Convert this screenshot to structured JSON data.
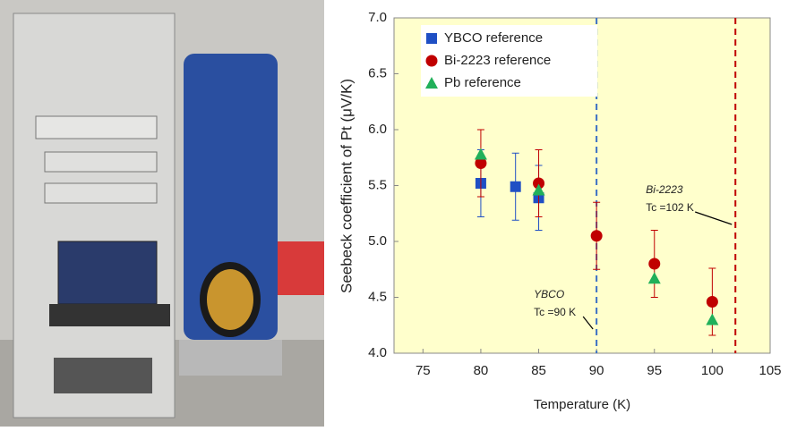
{
  "chart_data": {
    "type": "scatter",
    "xlabel": "Temperature (K)",
    "ylabel": "Seebeck coefficient of Pt  (μV/K)",
    "xlim": [
      72.5,
      105
    ],
    "xticks": [
      75,
      80,
      85,
      90,
      95,
      100,
      105
    ],
    "ylim": [
      4,
      7
    ],
    "yticks": [
      {
        "value": 4,
        "label": "4.0"
      },
      4.5,
      {
        "value": 5,
        "label": "5.0"
      },
      5.5,
      {
        "value": 6,
        "label": "6.0"
      },
      6.5,
      {
        "value": 7,
        "label": "7.0"
      }
    ],
    "background": "#ffffcc",
    "legend": "upper left",
    "series": [
      {
        "name": "YBCO reference",
        "color": "#1f4fc4",
        "marker": "square",
        "x": [
          80,
          83,
          85
        ],
        "values": [
          5.52,
          5.49,
          5.39
        ],
        "errors": [
          0.3,
          0.3,
          0.29
        ]
      },
      {
        "name": "Bi-2223 reference",
        "color": "#c00000",
        "marker": "circle",
        "x": [
          80,
          85,
          90,
          95,
          100
        ],
        "values": [
          5.7,
          5.52,
          5.05,
          4.8,
          4.46
        ],
        "errors": [
          0.3,
          0.3,
          0.3,
          0.3,
          0.3
        ]
      },
      {
        "name": "Pb reference",
        "color": "#21b05a",
        "marker": "triangle",
        "x": [
          80,
          85,
          95,
          100
        ],
        "values": [
          5.78,
          5.46,
          4.67,
          4.3
        ]
      }
    ],
    "reference_lines": [
      {
        "x": 90,
        "color": "#3a6fc4",
        "label": "YBCO",
        "sublabel": "Tc  =90 K"
      },
      {
        "x": 102,
        "color": "#c00000",
        "label": "Bi-2223",
        "sublabel": "Tc  =102 K"
      }
    ]
  }
}
